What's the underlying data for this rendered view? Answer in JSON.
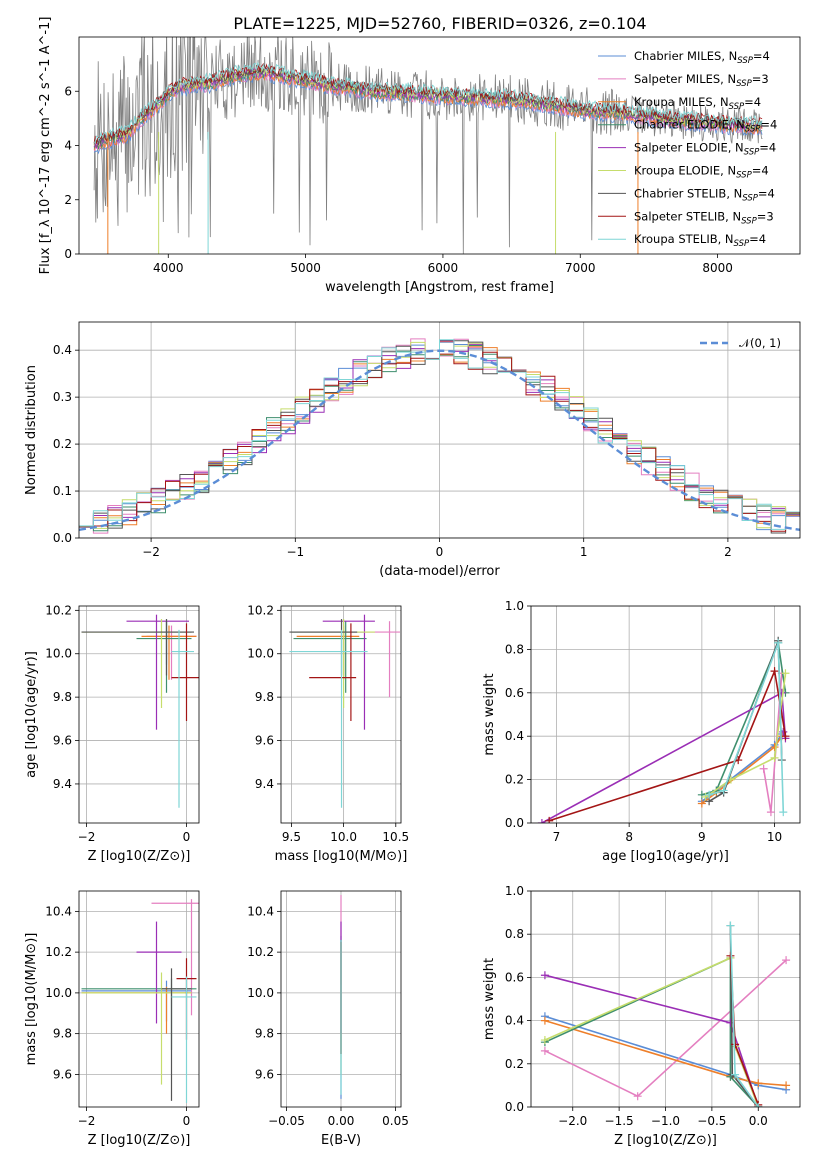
{
  "figure": {
    "title": "PLATE=1225, MJD=52760, FIBERID=0326, z=0.104"
  },
  "series_names": [
    "Chabrier MILES, N_SSP=4",
    "Salpeter MILES, N_SSP=3",
    "Kroupa MILES, N_SSP=4",
    "Chabrier ELODIE, N_SSP=4",
    "Salpeter ELODIE, N_SSP=4",
    "Kroupa ELODIE, N_SSP=4",
    "Chabrier STELIB, N_SSP=4",
    "Salpeter STELIB, N_SSP=3",
    "Kroupa STELIB, N_SSP=4"
  ],
  "series_colors": [
    "#5b8dd6",
    "#e47fc0",
    "#ee7f2a",
    "#3f8f6e",
    "#9a2eb5",
    "#c6dd6c",
    "#555555",
    "#a31515",
    "#7fd6d6"
  ],
  "chart_data": [
    {
      "id": "spectrum",
      "type": "line",
      "title": "PLATE=1225, MJD=52760, FIBERID=0326, z=0.104",
      "xlabel": "wavelength [Angstrom, rest frame]",
      "ylabel": "Flux [f_λ 10^-17 erg cm^-2 s^-1 A^-1]",
      "xlim": [
        3350,
        8600
      ],
      "ylim": [
        0,
        8
      ],
      "xticks": [
        4000,
        5000,
        6000,
        7000,
        8000
      ],
      "yticks": [
        0,
        2,
        4,
        6
      ],
      "legend": "right",
      "model_continuum": {
        "x": [
          3450,
          3550,
          3700,
          3800,
          3900,
          4000,
          4100,
          4300,
          4500,
          4700,
          5000,
          5200,
          5500,
          5800,
          6100,
          6500,
          6800,
          7000,
          7300,
          7600,
          8000,
          8300
        ],
        "y": [
          4.0,
          4.2,
          4.4,
          5.0,
          5.4,
          5.9,
          6.2,
          6.3,
          6.6,
          6.7,
          6.4,
          6.2,
          6.0,
          5.9,
          5.8,
          5.7,
          5.5,
          5.3,
          5.2,
          5.0,
          4.8,
          4.7
        ]
      },
      "data_spectrum_range": [
        3460,
        8330
      ]
    },
    {
      "id": "residuals",
      "type": "step",
      "xlabel": "(data-model)/error",
      "ylabel": "Normed distribution",
      "xlim": [
        -2.5,
        2.5
      ],
      "ylim": [
        0,
        0.46
      ],
      "xticks": [
        -2,
        -1,
        0,
        1,
        2
      ],
      "yticks": [
        0.0,
        0.1,
        0.2,
        0.3,
        0.4
      ],
      "bin_edges_range": [
        -2.5,
        2.5
      ],
      "bin_width": 0.1,
      "normal_curve_label": "𝒩(0, 1)",
      "legend": "top-right"
    },
    {
      "id": "age_vs_Z",
      "type": "errorbar",
      "xlabel": "Z [log10(Z/Z⊙)]",
      "ylabel": "age [log10(age/yr)]",
      "xlim": [
        -2.15,
        0.25
      ],
      "ylim": [
        9.22,
        10.22
      ],
      "xticks": [
        -2,
        0
      ],
      "yticks": [
        9.4,
        9.6,
        9.8,
        10.0,
        10.2
      ],
      "points": [
        {
          "x": -0.4,
          "xerr": [
            0.5,
            0.5
          ],
          "y": 10.1,
          "yerr": [
            0.15,
            0.05
          ]
        },
        {
          "x": -0.3,
          "xerr": [
            0.5,
            0.5
          ],
          "y": 10.08,
          "yerr": [
            0.2,
            0.05
          ]
        },
        {
          "x": -0.35,
          "xerr": [
            0.55,
            0.55
          ],
          "y": 10.08,
          "yerr": [
            0.2,
            0.05
          ]
        },
        {
          "x": -0.4,
          "xerr": [
            0.6,
            0.5
          ],
          "y": 10.07,
          "yerr": [
            0.25,
            0.08
          ]
        },
        {
          "x": -0.6,
          "xerr": [
            0.6,
            0.65
          ],
          "y": 10.15,
          "yerr": [
            0.5,
            0.03
          ]
        },
        {
          "x": -0.5,
          "xerr": [
            1.6,
            0.6
          ],
          "y": 10.1,
          "yerr": [
            0.35,
            0.06
          ]
        },
        {
          "x": -0.4,
          "xerr": [
            1.7,
            0.55
          ],
          "y": 10.1,
          "yerr": [
            0.2,
            0.06
          ]
        },
        {
          "x": 0.0,
          "xerr": [
            0.3,
            0.3
          ],
          "y": 9.89,
          "yerr": [
            0.2,
            0.25
          ]
        },
        {
          "x": -0.15,
          "xerr": [
            0.15,
            0.3
          ],
          "y": 10.01,
          "yerr": [
            0.72,
            0.1
          ]
        }
      ]
    },
    {
      "id": "age_vs_mass",
      "type": "errorbar",
      "xlabel": "mass [log10(M/M⊙)]",
      "ylabel": "",
      "xlim": [
        9.4,
        10.55
      ],
      "ylim": [
        9.22,
        10.22
      ],
      "xticks": [
        9.5,
        10.0,
        10.5
      ],
      "yticks": [
        9.4,
        9.6,
        9.8,
        10.0,
        10.2
      ],
      "points": [
        {
          "x": 10.0,
          "xerr": [
            0.5,
            0.2
          ],
          "y": 10.1,
          "yerr": [
            0.2,
            0.05
          ]
        },
        {
          "x": 10.44,
          "xerr": [
            0.4,
            0.1
          ],
          "y": 10.1,
          "yerr": [
            0.3,
            0.05
          ]
        },
        {
          "x": 10.0,
          "xerr": [
            0.45,
            0.15
          ],
          "y": 10.08,
          "yerr": [
            0.2,
            0.05
          ]
        },
        {
          "x": 10.02,
          "xerr": [
            0.5,
            0.2
          ],
          "y": 10.07,
          "yerr": [
            0.25,
            0.08
          ]
        },
        {
          "x": 10.2,
          "xerr": [
            0.4,
            0.1
          ],
          "y": 10.15,
          "yerr": [
            0.5,
            0.03
          ]
        },
        {
          "x": 10.0,
          "xerr": [
            0.5,
            0.3
          ],
          "y": 10.1,
          "yerr": [
            0.35,
            0.06
          ]
        },
        {
          "x": 9.98,
          "xerr": [
            0.5,
            0.15
          ],
          "y": 10.1,
          "yerr": [
            0.2,
            0.06
          ]
        },
        {
          "x": 10.07,
          "xerr": [
            0.4,
            0.05
          ],
          "y": 9.89,
          "yerr": [
            0.2,
            0.25
          ]
        },
        {
          "x": 9.98,
          "xerr": [
            0.5,
            0.25
          ],
          "y": 10.01,
          "yerr": [
            0.72,
            0.1
          ]
        }
      ]
    },
    {
      "id": "weight_vs_age",
      "type": "line",
      "xlabel": "age [log10(age/yr)]",
      "ylabel": "mass weight",
      "xlim": [
        6.65,
        10.35
      ],
      "ylim": [
        0,
        1.0
      ],
      "xticks": [
        7,
        8,
        9,
        10
      ],
      "yticks": [
        0.0,
        0.2,
        0.4,
        0.6,
        0.8,
        1.0
      ],
      "series": [
        {
          "x": [
            9.0,
            9.2,
            10.0,
            10.1
          ],
          "y": [
            0.1,
            0.15,
            0.36,
            0.41
          ]
        },
        {
          "x": [
            9.85,
            9.95,
            10.1
          ],
          "y": [
            0.25,
            0.05,
            0.69
          ]
        },
        {
          "x": [
            9.0,
            9.2,
            10.0,
            10.1
          ],
          "y": [
            0.09,
            0.14,
            0.35,
            0.4
          ]
        },
        {
          "x": [
            9.0,
            9.2,
            10.05,
            10.15
          ],
          "y": [
            0.13,
            0.15,
            0.83,
            0.6
          ]
        },
        {
          "x": [
            6.8,
            10.1,
            10.15,
            10.12
          ],
          "y": [
            0.0,
            0.6,
            0.39,
            0.42
          ]
        },
        {
          "x": [
            9.05,
            9.4,
            10.0,
            10.15
          ],
          "y": [
            0.12,
            0.2,
            0.3,
            0.69
          ]
        },
        {
          "x": [
            9.1,
            9.3,
            10.05,
            10.1
          ],
          "y": [
            0.1,
            0.14,
            0.84,
            0.29
          ]
        },
        {
          "x": [
            6.9,
            9.5,
            10.0,
            10.15
          ],
          "y": [
            0.01,
            0.29,
            0.7,
            0.4
          ]
        },
        {
          "x": [
            9.1,
            9.3,
            10.05,
            10.12
          ],
          "y": [
            0.13,
            0.15,
            0.83,
            0.05
          ]
        }
      ]
    },
    {
      "id": "mass_vs_Z",
      "type": "errorbar",
      "xlabel": "Z [log10(Z/Z⊙)]",
      "ylabel": "mass [log10(M/M⊙)]",
      "xlim": [
        -2.15,
        0.25
      ],
      "ylim": [
        9.44,
        10.5
      ],
      "xticks": [
        -2,
        0
      ],
      "yticks": [
        9.6,
        9.8,
        10.0,
        10.2,
        10.4
      ],
      "points": [
        {
          "x": -0.4,
          "xerr": [
            1.7,
            0.5
          ],
          "y": 10.01,
          "yerr": [
            0.15,
            0.05
          ]
        },
        {
          "x": 0.1,
          "xerr": [
            0.8,
            0.2
          ],
          "y": 10.44,
          "yerr": [
            0.55,
            0.02
          ]
        },
        {
          "x": -0.4,
          "xerr": [
            1.7,
            0.5
          ],
          "y": 10.0,
          "yerr": [
            0.2,
            0.03
          ]
        },
        {
          "x": -0.3,
          "xerr": [
            1.8,
            0.5
          ],
          "y": 10.02,
          "yerr": [
            0.3,
            0.05
          ]
        },
        {
          "x": -0.6,
          "xerr": [
            0.4,
            0.5
          ],
          "y": 10.2,
          "yerr": [
            0.35,
            0.15
          ]
        },
        {
          "x": -0.5,
          "xerr": [
            1.6,
            0.6
          ],
          "y": 10.0,
          "yerr": [
            0.45,
            0.1
          ]
        },
        {
          "x": -0.3,
          "xerr": [
            0.2,
            0.4
          ],
          "y": 10.02,
          "yerr": [
            0.55,
            0.1
          ]
        },
        {
          "x": 0.0,
          "xerr": [
            0.2,
            0.2
          ],
          "y": 10.07,
          "yerr": [
            0.3,
            0.1
          ]
        },
        {
          "x": 0.0,
          "xerr": [
            0.3,
            0.2
          ],
          "y": 9.98,
          "yerr": [
            0.52,
            0.1
          ]
        }
      ]
    },
    {
      "id": "mass_vs_ebv",
      "type": "errorbar",
      "xlabel": "E(B-V)",
      "ylabel": "",
      "xlim": [
        -0.055,
        0.055
      ],
      "ylim": [
        9.44,
        10.5
      ],
      "xticks": [
        -0.05,
        0.0,
        0.05
      ],
      "yticks": [
        9.6,
        9.8,
        10.0,
        10.2,
        10.4
      ],
      "points": [
        {
          "x": 0.0,
          "y": 10.2,
          "yerr": [
            0.72,
            0.08
          ]
        },
        {
          "x": 0.0,
          "y": 10.44,
          "yerr": [
            0.4,
            0.04
          ]
        },
        {
          "x": 0.0,
          "y": 10.2,
          "yerr": [
            0.5,
            0.05
          ]
        },
        {
          "x": 0.0,
          "y": 10.2,
          "yerr": [
            0.5,
            0.06
          ]
        },
        {
          "x": 0.0,
          "y": 10.3,
          "yerr": [
            0.5,
            0.05
          ]
        },
        {
          "x": 0.0,
          "y": 10.2,
          "yerr": [
            0.6,
            0.05
          ]
        },
        {
          "x": 0.0,
          "y": 10.2,
          "yerr": [
            0.5,
            0.06
          ]
        },
        {
          "x": 0.0,
          "y": 10.2,
          "yerr": [
            0.5,
            0.05
          ]
        },
        {
          "x": 0.0,
          "y": 10.2,
          "yerr": [
            0.7,
            0.06
          ]
        }
      ]
    },
    {
      "id": "weight_vs_Z",
      "type": "line",
      "xlabel": "Z [log10(Z/Z⊙)]",
      "ylabel": "mass weight",
      "xlim": [
        -2.45,
        0.45
      ],
      "ylim": [
        0,
        1.0
      ],
      "xticks": [
        -2.0,
        -1.5,
        -1.0,
        -0.5,
        0.0
      ],
      "yticks": [
        0.0,
        0.2,
        0.4,
        0.6,
        0.8,
        1.0
      ],
      "series": [
        {
          "x": [
            -2.3,
            -0.3,
            0.0,
            0.3
          ],
          "y": [
            0.42,
            0.15,
            0.1,
            0.08
          ]
        },
        {
          "x": [
            -2.3,
            -1.3,
            0.3
          ],
          "y": [
            0.26,
            0.05,
            0.68
          ]
        },
        {
          "x": [
            -2.3,
            -0.3,
            0.0,
            0.3
          ],
          "y": [
            0.4,
            0.14,
            0.11,
            0.1
          ]
        },
        {
          "x": [
            -2.3,
            -0.3,
            -0.3,
            0.0
          ],
          "y": [
            0.3,
            0.69,
            0.14,
            0.0
          ]
        },
        {
          "x": [
            -2.3,
            -0.3,
            0.0
          ],
          "y": [
            0.61,
            0.39,
            0.0
          ]
        },
        {
          "x": [
            -2.3,
            -0.3,
            -0.25,
            0.0
          ],
          "y": [
            0.31,
            0.69,
            0.28,
            0.0
          ]
        },
        {
          "x": [
            -0.3,
            -0.28,
            0.0
          ],
          "y": [
            0.84,
            0.15,
            0.0
          ]
        },
        {
          "x": [
            -0.3,
            -0.25,
            0.0
          ],
          "y": [
            0.7,
            0.29,
            0.01
          ]
        },
        {
          "x": [
            -0.3,
            -0.25,
            0.0
          ],
          "y": [
            0.84,
            0.15,
            0.0
          ]
        }
      ]
    }
  ]
}
